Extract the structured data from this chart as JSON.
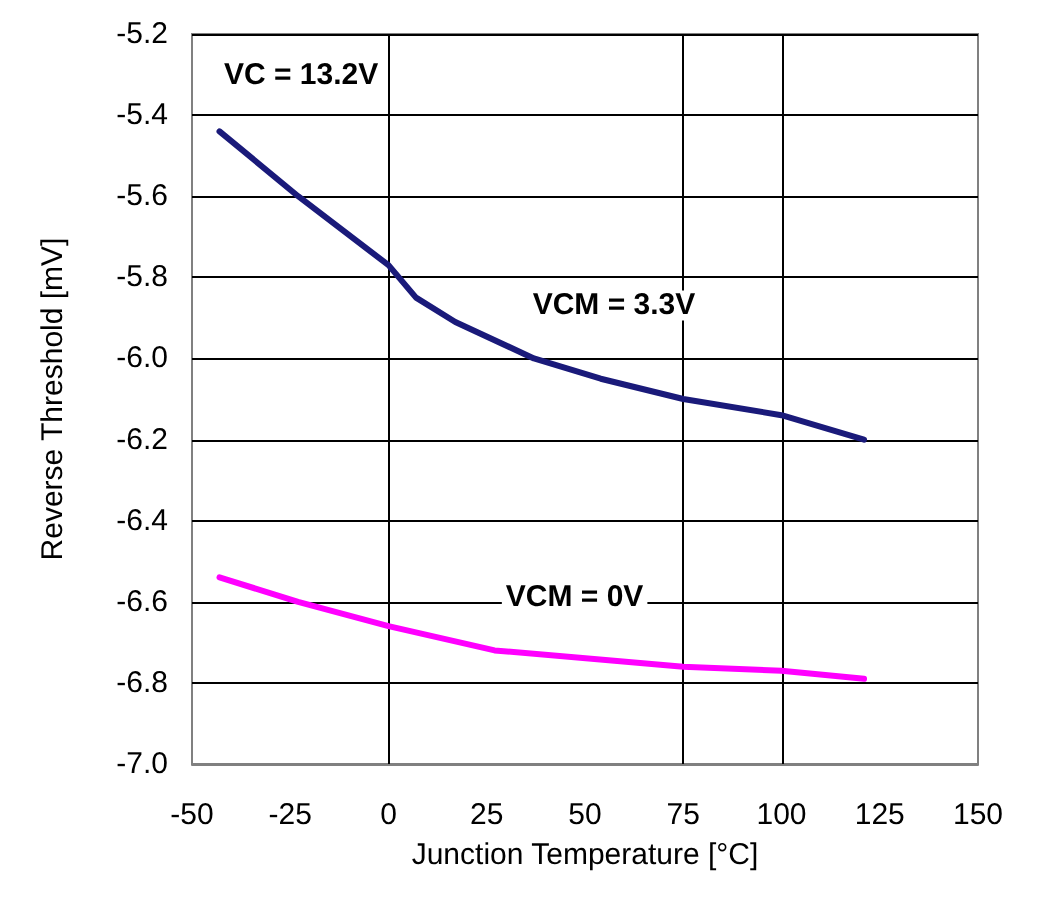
{
  "chart_data": {
    "type": "line",
    "xlabel": "Junction Temperature [°C]",
    "ylabel": "Reverse Threshold [mV]",
    "annotations": [
      "VC = 13.2V"
    ],
    "series": [
      {
        "name": "VCM = 3.3V",
        "color": "#1a1a7a",
        "x": [
          -43,
          -23,
          0,
          7,
          17,
          37,
          54,
          75,
          100,
          121
        ],
        "values": [
          -5.44,
          -5.6,
          -5.77,
          -5.85,
          -5.91,
          -6.0,
          -6.05,
          -6.1,
          -6.14,
          -6.2
        ]
      },
      {
        "name": "VCM = 0V",
        "color": "#ff00ff",
        "x": [
          -43,
          -23,
          0,
          27,
          75,
          100,
          121
        ],
        "values": [
          -6.54,
          -6.6,
          -6.66,
          -6.72,
          -6.76,
          -6.77,
          -6.79
        ]
      }
    ],
    "xlim": [
      -50,
      150
    ],
    "xticks": [
      -50,
      -25,
      0,
      25,
      50,
      75,
      100,
      125,
      150
    ],
    "ylim": [
      -7.0,
      -5.2
    ],
    "yticks": [
      {
        "value": -7,
        "label": "-7.0"
      },
      -6.8,
      -6.6,
      -6.4,
      -6.2,
      {
        "value": -6,
        "label": "-6.0"
      },
      -5.8,
      -5.6,
      -5.4,
      -5.2
    ],
    "grid": "y",
    "marker": "none",
    "line_style": "solid",
    "ref_lines": [
      {
        "axis": "x",
        "value": 0,
        "color": "#000000"
      },
      {
        "axis": "x",
        "value": 75,
        "color": "#000000"
      },
      {
        "axis": "x",
        "value": 100,
        "color": "#000000"
      }
    ]
  }
}
